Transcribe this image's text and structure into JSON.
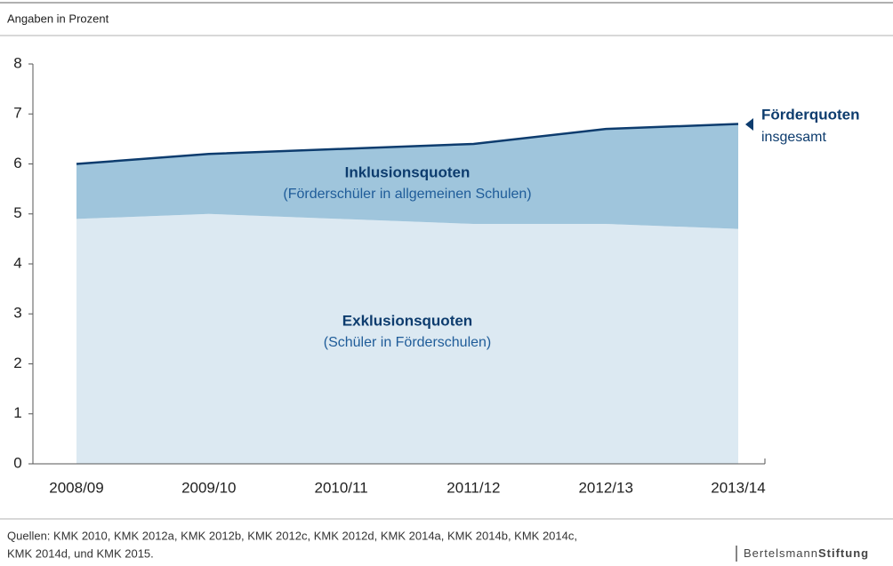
{
  "chart_data": {
    "type": "stacked_area",
    "subtitle": "Angaben in Prozent",
    "categories": [
      "2008/09",
      "2009/10",
      "2010/11",
      "2011/12",
      "2012/13",
      "2013/14"
    ],
    "series": [
      {
        "name": "Exklusionsquoten",
        "description": "(Schüler in Förderschulen)",
        "color": "#dce9f2",
        "values": [
          4.9,
          5.0,
          4.9,
          4.8,
          4.8,
          4.7
        ]
      },
      {
        "name": "Inklusionsquoten",
        "description": "(Förderschüler in allgemeinen Schulen)",
        "color": "#9fc5dc",
        "values": [
          1.1,
          1.2,
          1.4,
          1.6,
          1.9,
          2.1
        ]
      }
    ],
    "total_line": {
      "label": [
        "Förderquoten",
        "insgesamt"
      ],
      "color": "#0d3c6e"
    },
    "ylim": [
      0,
      8
    ],
    "yticks": [
      0,
      1,
      2,
      3,
      4,
      5,
      6,
      7,
      8
    ],
    "source": [
      "Quellen: KMK 2010, KMK 2012a, KMK 2012b, KMK 2012c, KMK 2012d, KMK 2014a, KMK 2014b, KMK 2014c,",
      "KMK 2014d, und KMK 2015."
    ],
    "brand": [
      "Bertelsmann",
      "Stiftung"
    ]
  }
}
